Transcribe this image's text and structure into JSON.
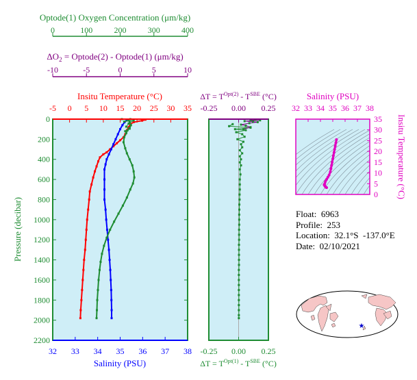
{
  "colors": {
    "temperature": "#ff0000",
    "salinity": "#0000ff",
    "oxygen": "#1e8c32",
    "delta_o2": "#800080",
    "salinity_panel": "#e000c0",
    "plot_bg": "#cfeef7",
    "land": "#f6c6c6",
    "ocean_map": "#ffffff",
    "float_marker": "#0000cc"
  },
  "info": {
    "float_label": "Float:",
    "float_value": "6963",
    "profile_label": "Profile:",
    "profile_value": "253",
    "location_label": "Location:",
    "location_value": "32.1°S  -137.0°E",
    "date_label": "Date:",
    "date_value": "02/10/2021"
  },
  "map": {
    "marker_symbol": "★"
  },
  "chart_data": [
    {
      "type": "line",
      "id": "main_profiles",
      "ylabel": "Pressure (decibar)",
      "ylim": [
        2200,
        0
      ],
      "y_ticks": [
        0,
        200,
        400,
        600,
        800,
        1000,
        1200,
        1400,
        1600,
        1800,
        2000,
        2200
      ],
      "grid": false,
      "axes": {
        "temperature": {
          "title_prefix": "Insitu Temperature ",
          "title_unit": "(°C)",
          "range": [
            -5,
            35
          ],
          "ticks": [
            -5,
            0,
            5,
            10,
            15,
            20,
            25,
            30,
            35
          ]
        },
        "salinity": {
          "title": "Salinity (PSU)",
          "range": [
            32,
            38
          ],
          "ticks": [
            32,
            33,
            34,
            35,
            36,
            37,
            38
          ]
        },
        "oxygen": {
          "title": "Optode(1) Oxygen Concentration (μm/kg)",
          "range": [
            0,
            400
          ],
          "ticks": [
            0,
            100,
            200,
            300,
            400
          ]
        },
        "delta_o2": {
          "title_lhs": "ΔO",
          "title_sub": "2",
          "title_rhs": " = Optode(2) - Optode(1)      (μm/kg)",
          "range": [
            -10,
            10
          ],
          "ticks": [
            -10,
            -5,
            0,
            5,
            10
          ]
        }
      },
      "series": [
        {
          "axis": "temperature",
          "points": [
            [
              22.5,
              5
            ],
            [
              21.5,
              15
            ],
            [
              19,
              30
            ],
            [
              18,
              50
            ],
            [
              17.5,
              80
            ],
            [
              17,
              110
            ],
            [
              16.5,
              150
            ],
            [
              16,
              180
            ],
            [
              15,
              210
            ],
            [
              14,
              240
            ],
            [
              13,
              270
            ],
            [
              12,
              300
            ],
            [
              11,
              330
            ],
            [
              10,
              350
            ],
            [
              9,
              380
            ],
            [
              8.5,
              420
            ],
            [
              8,
              470
            ],
            [
              7.5,
              520
            ],
            [
              7,
              580
            ],
            [
              6.5,
              650
            ],
            [
              6,
              720
            ],
            [
              5.8,
              800
            ],
            [
              5.5,
              900
            ],
            [
              5.2,
              1000
            ],
            [
              5,
              1100
            ],
            [
              4.8,
              1200
            ],
            [
              4.6,
              1300
            ],
            [
              4.3,
              1400
            ],
            [
              4.1,
              1500
            ],
            [
              3.9,
              1600
            ],
            [
              3.7,
              1700
            ],
            [
              3.5,
              1800
            ],
            [
              3.3,
              1900
            ],
            [
              3.2,
              1980
            ]
          ]
        },
        {
          "axis": "salinity",
          "points": [
            [
              35.3,
              5
            ],
            [
              35.2,
              30
            ],
            [
              35.1,
              60
            ],
            [
              35.0,
              100
            ],
            [
              34.9,
              150
            ],
            [
              34.8,
              200
            ],
            [
              34.7,
              250
            ],
            [
              34.6,
              300
            ],
            [
              34.5,
              350
            ],
            [
              34.4,
              400
            ],
            [
              34.35,
              450
            ],
            [
              34.3,
              500
            ],
            [
              34.3,
              600
            ],
            [
              34.3,
              700
            ],
            [
              34.3,
              800
            ],
            [
              34.35,
              900
            ],
            [
              34.38,
              1000
            ],
            [
              34.42,
              1100
            ],
            [
              34.46,
              1200
            ],
            [
              34.5,
              1300
            ],
            [
              34.53,
              1400
            ],
            [
              34.56,
              1500
            ],
            [
              34.58,
              1600
            ],
            [
              34.6,
              1700
            ],
            [
              34.61,
              1800
            ],
            [
              34.62,
              1900
            ],
            [
              34.62,
              1980
            ]
          ]
        },
        {
          "axis": "oxygen",
          "points": [
            [
              225,
              5
            ],
            [
              228,
              30
            ],
            [
              232,
              60
            ],
            [
              228,
              90
            ],
            [
              222,
              110
            ],
            [
              218,
              140
            ],
            [
              212,
              180
            ],
            [
              210,
              230
            ],
            [
              215,
              290
            ],
            [
              220,
              340
            ],
            [
              228,
              400
            ],
            [
              236,
              460
            ],
            [
              240,
              520
            ],
            [
              242,
              580
            ],
            [
              238,
              640
            ],
            [
              230,
              700
            ],
            [
              220,
              780
            ],
            [
              208,
              860
            ],
            [
              195,
              940
            ],
            [
              182,
              1020
            ],
            [
              170,
              1100
            ],
            [
              160,
              1180
            ],
            [
              152,
              1260
            ],
            [
              146,
              1340
            ],
            [
              142,
              1420
            ],
            [
              139,
              1500
            ],
            [
              136,
              1600
            ],
            [
              134,
              1700
            ],
            [
              132,
              1800
            ],
            [
              131,
              1900
            ],
            [
              130,
              1980
            ]
          ]
        },
        {
          "axis": "oxygen",
          "name_key": "oxygen_surface_alt",
          "points": [
            [
              205,
              0
            ],
            [
              230,
              0
            ],
            [
              212,
              25
            ],
            [
              240,
              12
            ],
            [
              225,
              45
            ],
            [
              218,
              75
            ],
            [
              228,
              95
            ],
            [
              215,
              120
            ]
          ]
        }
      ]
    },
    {
      "type": "scatter",
      "id": "delta_t",
      "top_title_prefix": "ΔT = T",
      "top_title_sup": "Opt(2)",
      "top_title_mid": " - T",
      "top_title_sup2": "SBE",
      "top_title_suffix": " (°C)",
      "bottom_title_prefix": "ΔT = T",
      "bottom_title_sup": "Opt(1)",
      "bottom_title_mid": " - T",
      "bottom_title_sup2": "SBE",
      "bottom_title_suffix": " (°C)",
      "xlim": [
        -0.25,
        0.25
      ],
      "ylim": [
        2200,
        0
      ],
      "x_ticks": [
        "-0.25",
        "0.00",
        "0.25"
      ],
      "top_points": [
        [
          0.14,
          5
        ],
        [
          0.1,
          10
        ],
        [
          0.18,
          12
        ],
        [
          0.05,
          20
        ],
        [
          0.12,
          25
        ],
        [
          0.16,
          30
        ],
        [
          0.09,
          40
        ],
        [
          0.02,
          55
        ],
        [
          0.06,
          65
        ],
        [
          0.1,
          80
        ],
        [
          0.04,
          100
        ]
      ],
      "bottom_points": [
        [
          -0.05,
          50
        ],
        [
          -0.08,
          70
        ],
        [
          0.1,
          85
        ],
        [
          -0.03,
          100
        ],
        [
          0.06,
          110
        ],
        [
          -0.02,
          130
        ],
        [
          0.03,
          150
        ],
        [
          0.05,
          175
        ],
        [
          -0.01,
          200
        ],
        [
          0.04,
          225
        ],
        [
          0.02,
          250
        ],
        [
          0.03,
          280
        ],
        [
          0.01,
          310
        ],
        [
          0.03,
          340
        ],
        [
          0.01,
          370
        ],
        [
          0.02,
          400
        ],
        [
          0.01,
          430
        ],
        [
          0.02,
          460
        ],
        [
          0.01,
          500
        ],
        [
          0.015,
          550
        ],
        [
          0.01,
          600
        ],
        [
          0.01,
          650
        ],
        [
          0.01,
          700
        ],
        [
          0.008,
          750
        ],
        [
          0.008,
          800
        ],
        [
          0.006,
          850
        ],
        [
          0.006,
          900
        ],
        [
          0.005,
          950
        ],
        [
          0.005,
          1000
        ],
        [
          0.005,
          1050
        ],
        [
          0.004,
          1100
        ],
        [
          0.004,
          1150
        ],
        [
          0.004,
          1200
        ],
        [
          0.003,
          1250
        ],
        [
          0.003,
          1300
        ],
        [
          0.003,
          1350
        ],
        [
          0.003,
          1400
        ],
        [
          0.003,
          1450
        ],
        [
          0.002,
          1500
        ],
        [
          0.002,
          1550
        ],
        [
          0.002,
          1600
        ],
        [
          0.002,
          1650
        ],
        [
          0.002,
          1700
        ],
        [
          0.002,
          1750
        ],
        [
          0.002,
          1800
        ],
        [
          0.002,
          1850
        ],
        [
          0.002,
          1900
        ],
        [
          0.002,
          1950
        ],
        [
          0.002,
          1980
        ]
      ]
    },
    {
      "type": "scatter",
      "id": "ts_diagram",
      "title": "Salinity (PSU)",
      "ylabel": "Insitu Temperature (°C)",
      "xlim": [
        32,
        38
      ],
      "ylim": [
        0,
        35
      ],
      "x_ticks": [
        32,
        33,
        34,
        35,
        36,
        37,
        38
      ],
      "y_ticks": [
        0,
        5,
        10,
        15,
        20,
        25,
        30,
        35
      ],
      "density_contours": true,
      "points": [
        [
          35.3,
          25.5
        ],
        [
          35.25,
          24
        ],
        [
          35.2,
          22.5
        ],
        [
          35.15,
          21
        ],
        [
          35.1,
          19.5
        ],
        [
          35.05,
          18
        ],
        [
          35.0,
          16.5
        ],
        [
          34.95,
          15
        ],
        [
          34.9,
          13.5
        ],
        [
          34.85,
          12
        ],
        [
          34.8,
          10.5
        ],
        [
          34.7,
          9
        ],
        [
          34.6,
          8
        ],
        [
          34.5,
          7
        ],
        [
          34.4,
          6
        ],
        [
          34.35,
          5
        ],
        [
          34.3,
          4.5
        ],
        [
          34.35,
          4
        ],
        [
          34.4,
          3.6
        ],
        [
          34.45,
          3.3
        ],
        [
          34.5,
          3.2
        ]
      ]
    }
  ]
}
